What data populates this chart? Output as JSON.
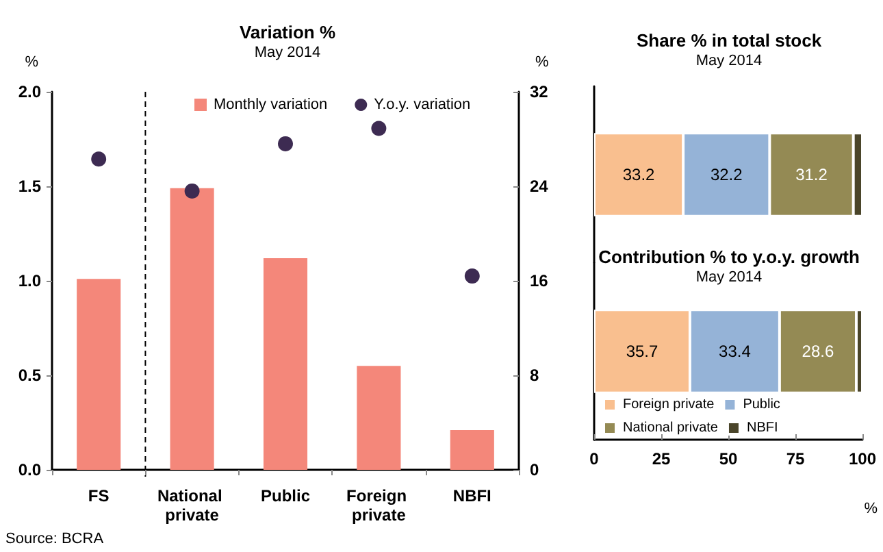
{
  "chart_data": [
    {
      "type": "bar",
      "title": "Variation %",
      "subtitle": "May 2014",
      "ylabel": "%",
      "y2label": "%",
      "categories": [
        "FS",
        "National private",
        "Public",
        "Foreign private",
        "NBFI"
      ],
      "series": [
        {
          "name": "Monthly variation",
          "color": "#f4877a",
          "values": [
            1.01,
            1.49,
            1.12,
            0.55,
            0.21
          ]
        },
        {
          "name": "Y.o.y. variation",
          "type": "scatter",
          "axis": "y2",
          "color": "#3d2b52",
          "values": [
            26.3,
            23.6,
            27.6,
            28.9,
            16.4
          ]
        }
      ],
      "ylim": [
        0,
        2
      ],
      "yticks": [
        {
          "value": 0,
          "label": "0.0"
        },
        {
          "value": 0.5,
          "label": "0.5"
        },
        {
          "value": 1,
          "label": "1.0"
        },
        {
          "value": 1.5,
          "label": "1.5"
        },
        {
          "value": 2,
          "label": "2.0"
        }
      ],
      "y2lim": [
        0,
        32
      ],
      "y2ticks": [
        0,
        8,
        16,
        24,
        32
      ],
      "legend": "top",
      "marker": "circle",
      "annotations": [
        "Source: BCRA"
      ]
    },
    {
      "type": "bar",
      "orientation": "horizontal",
      "stacked": true,
      "title": "Share % in total stock",
      "subtitle": "May 2014",
      "categories": [
        null
      ],
      "series": [
        {
          "color": "#f9bf8f",
          "values": [
            33.2
          ],
          "value_labels": [
            "33.2"
          ]
        },
        {
          "color": "#95b3d7",
          "values": [
            32.2
          ],
          "value_labels": [
            "32.2"
          ]
        },
        {
          "color": "#948a54",
          "values": [
            31.2
          ],
          "value_labels": [
            "31.2"
          ]
        },
        {
          "color": "#4a452a",
          "values": [
            3.4
          ],
          "value_labels": [
            null
          ]
        }
      ],
      "xlim": [
        0,
        100
      ],
      "xticks": [
        0,
        25,
        50,
        75,
        100
      ],
      "tick_labels": false
    },
    {
      "type": "bar",
      "orientation": "horizontal",
      "stacked": true,
      "title": "Contribution % to y.o.y. growth",
      "subtitle": "May 2014",
      "xlabel": "%",
      "categories": [
        null
      ],
      "series": [
        {
          "name": "Foreign private",
          "color": "#f9bf8f",
          "values": [
            35.7
          ],
          "value_labels": [
            "35.7"
          ]
        },
        {
          "name": "Public",
          "color": "#95b3d7",
          "values": [
            33.4
          ],
          "value_labels": [
            "33.4"
          ]
        },
        {
          "name": "National private",
          "color": "#948a54",
          "values": [
            28.6
          ],
          "value_labels": [
            "28.6"
          ]
        },
        {
          "name": "NBFI",
          "color": "#4a452a",
          "values": [
            2.3
          ],
          "value_labels": [
            null
          ]
        }
      ],
      "xlim": [
        0,
        100
      ],
      "xticks": [
        0,
        25,
        50,
        75,
        100
      ],
      "tick_labels": "x",
      "legend": "bottom"
    }
  ]
}
